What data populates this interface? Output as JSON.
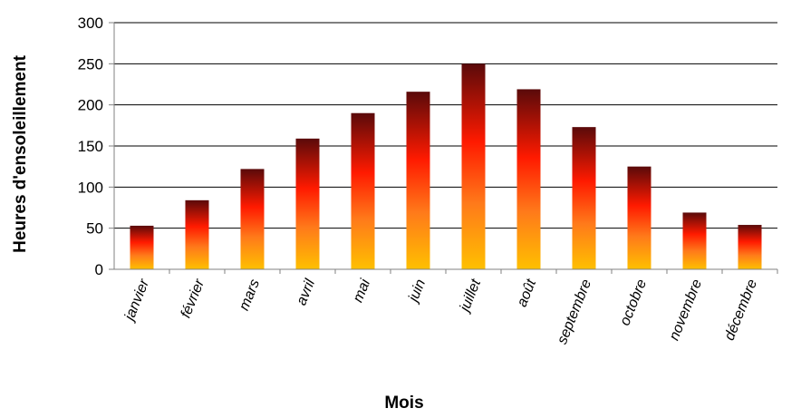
{
  "chart_data": {
    "type": "bar",
    "title": "",
    "xlabel": "Mois",
    "ylabel": "Heures d'ensoleillement",
    "ylim": [
      0,
      300
    ],
    "yticks": [
      0,
      50,
      100,
      150,
      200,
      250,
      300
    ],
    "grid": true,
    "legend": "none",
    "categories": [
      "janvier",
      "février",
      "mars",
      "avril",
      "mai",
      "juin",
      "juillet",
      "août",
      "septembre",
      "octobre",
      "novembre",
      "décembre"
    ],
    "values": [
      53,
      84,
      122,
      159,
      190,
      216,
      250,
      219,
      173,
      125,
      69,
      54
    ],
    "colors": {
      "bar_top": "#5a0a0a",
      "bar_mid": "#ff1a00",
      "bar_low": "#ff7a1a",
      "bar_bottom": "#ffc000",
      "grid": "#000000",
      "axis": "#808080"
    }
  }
}
